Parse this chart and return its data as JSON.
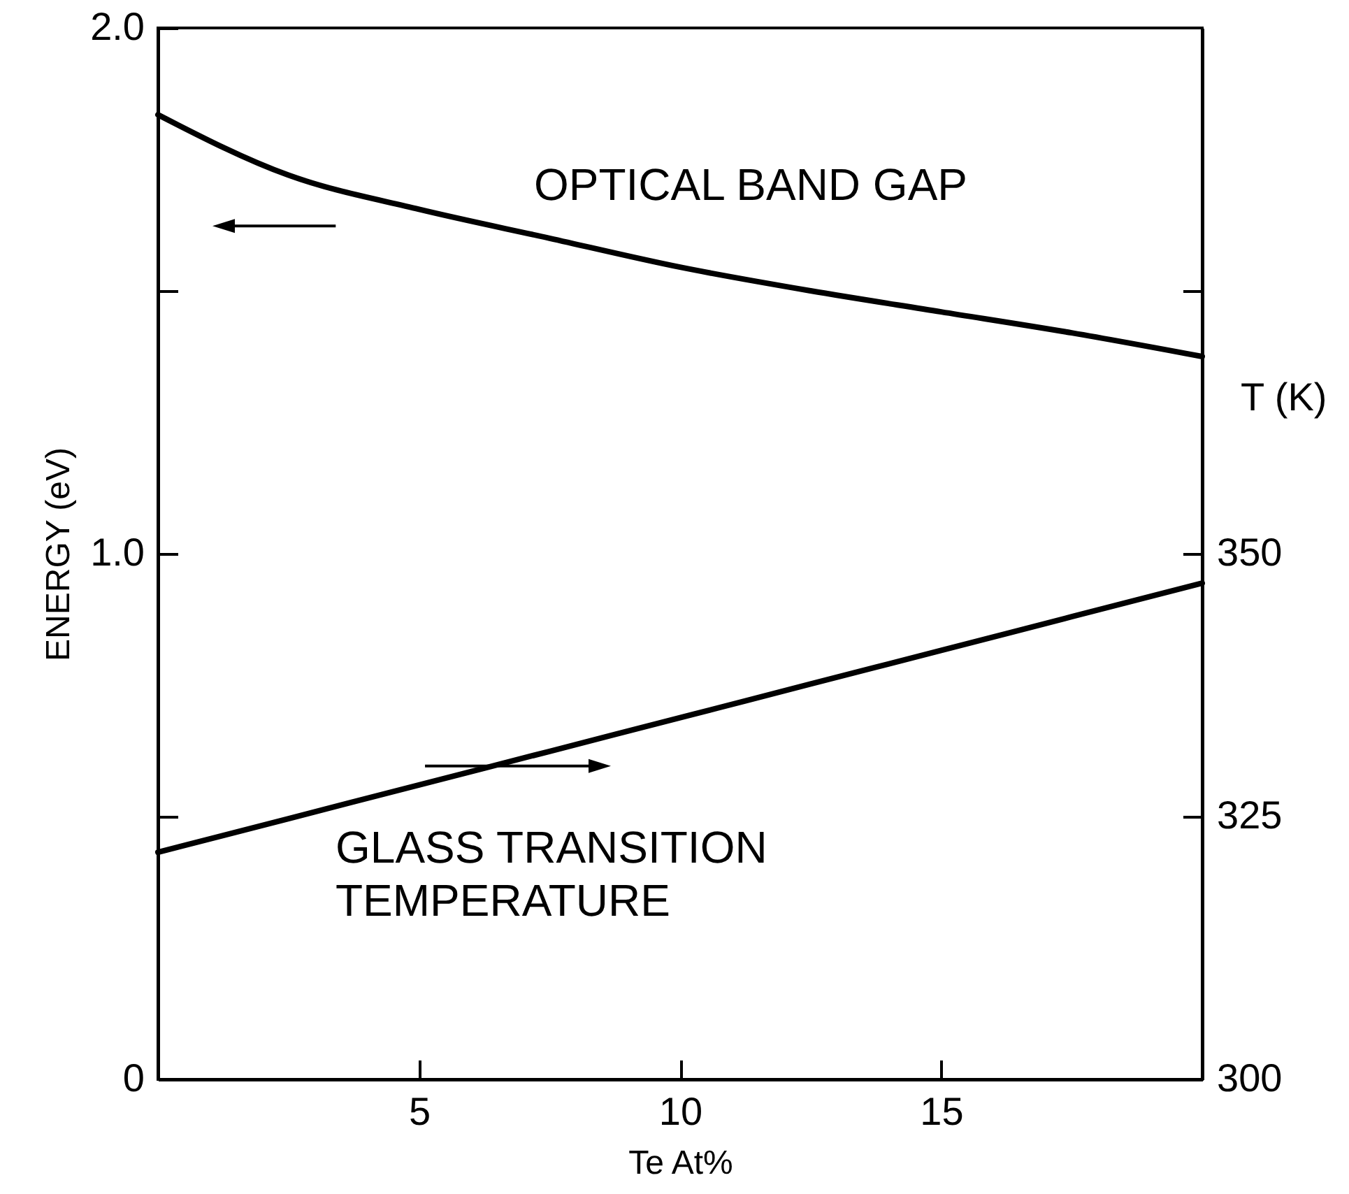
{
  "chart_data": {
    "type": "line",
    "xlabel": "Te At%",
    "ylabel": "ENERGY (eV)",
    "y2label": "T (K)",
    "x": [
      0,
      2.5,
      5,
      7.5,
      10,
      12.5,
      15,
      17.5,
      20
    ],
    "xlim": [
      0,
      20
    ],
    "xticks": [
      5,
      10,
      15
    ],
    "ylim": [
      0,
      2
    ],
    "yticks": [
      {
        "value": 0,
        "label": "0"
      },
      {
        "value": 0.5,
        "label": null
      },
      {
        "value": 1,
        "label": "1.0"
      },
      {
        "value": 1.5,
        "label": null
      },
      {
        "value": 2,
        "label": "2.0"
      }
    ],
    "y2lim": [
      300,
      400
    ],
    "y2ticks": [
      300,
      325,
      350,
      {
        "value": 375,
        "label": null
      }
    ],
    "series": [
      {
        "color": "#000000",
        "values": [
          1.835,
          1.72,
          1.655,
          1.6,
          1.545,
          1.5,
          1.46,
          1.42,
          1.375
        ]
      },
      {
        "color": "#000000",
        "axis": "y2",
        "values": [
          321.6,
          324.8,
          328,
          331.2,
          334.4,
          337.6,
          340.8,
          344,
          347.2
        ]
      }
    ],
    "annotations": [
      "OPTICAL BAND GAP",
      "GLASS TRANSITION\nTEMPERATURE"
    ],
    "grid": false,
    "marker": "none",
    "line_style": "solid"
  }
}
